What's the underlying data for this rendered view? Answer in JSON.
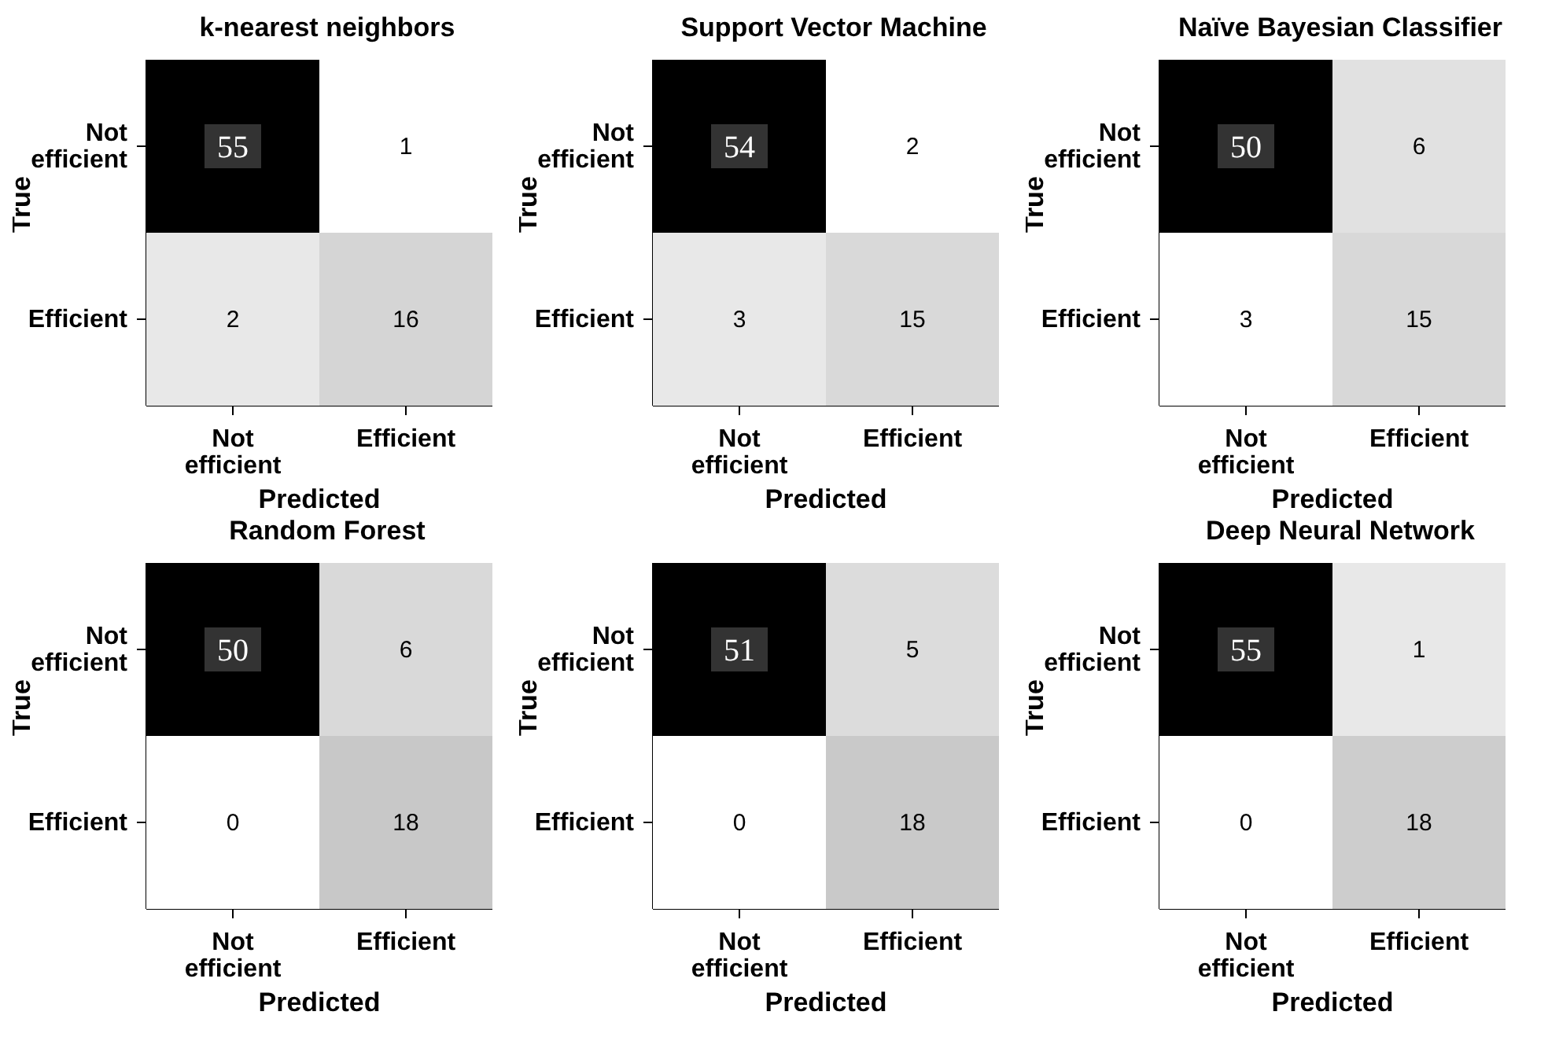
{
  "chart_data": [
    {
      "type": "heatmap",
      "title": "k-nearest neighbors",
      "categories": [
        "Not efficient",
        "Efficient"
      ],
      "y_categories": [
        "Not efficient",
        "Efficient"
      ],
      "cells": [
        [
          55,
          1
        ],
        [
          2,
          16
        ]
      ],
      "xlabel": "Predicted",
      "ylabel": "True",
      "data_labels": true
    },
    {
      "type": "heatmap",
      "title": "Support Vector Machine",
      "categories": [
        "Not efficient",
        "Efficient"
      ],
      "y_categories": [
        "Not efficient",
        "Efficient"
      ],
      "cells": [
        [
          54,
          2
        ],
        [
          3,
          15
        ]
      ],
      "xlabel": "Predicted",
      "ylabel": "True",
      "data_labels": true
    },
    {
      "type": "heatmap",
      "title": "Naïve Bayesian Classifier",
      "categories": [
        "Not efficient",
        "Efficient"
      ],
      "y_categories": [
        "Not efficient",
        "Efficient"
      ],
      "cells": [
        [
          50,
          6
        ],
        [
          3,
          15
        ]
      ],
      "xlabel": "Predicted",
      "ylabel": "True",
      "data_labels": true
    },
    {
      "type": "heatmap",
      "title": "Random Forest",
      "categories": [
        "Not efficient",
        "Efficient"
      ],
      "y_categories": [
        "Not efficient",
        "Efficient"
      ],
      "cells": [
        [
          50,
          6
        ],
        [
          0,
          18
        ]
      ],
      "xlabel": "Predicted",
      "ylabel": "True",
      "data_labels": true
    },
    {
      "type": "heatmap",
      "categories": [
        "Not efficient",
        "Efficient"
      ],
      "y_categories": [
        "Not efficient",
        "Efficient"
      ],
      "cells": [
        [
          51,
          5
        ],
        [
          0,
          18
        ]
      ],
      "xlabel": "Predicted",
      "ylabel": "True",
      "data_labels": true
    },
    {
      "type": "heatmap",
      "title": "Deep Neural Network",
      "categories": [
        "Not efficient",
        "Efficient"
      ],
      "y_categories": [
        "Not efficient",
        "Efficient"
      ],
      "cells": [
        [
          55,
          1
        ],
        [
          0,
          18
        ]
      ],
      "xlabel": "Predicted",
      "ylabel": "True",
      "data_labels": true
    }
  ]
}
